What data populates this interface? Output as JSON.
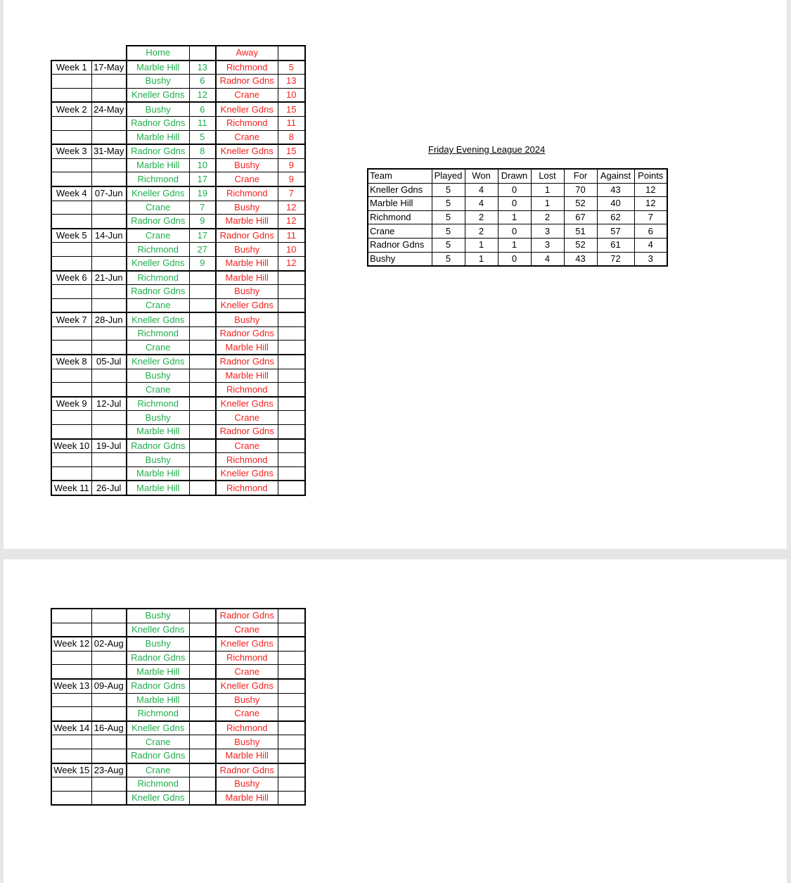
{
  "colors": {
    "home": "#1fae4b",
    "away": "#f5211e"
  },
  "fixtures": {
    "header": {
      "home": "Home",
      "away": "Away"
    },
    "page1": [
      {
        "week": "Week 1",
        "date": "17-May",
        "matches": [
          [
            "Marble Hill",
            "13",
            "Richmond",
            "5"
          ],
          [
            "Bushy",
            "6",
            "Radnor Gdns",
            "13"
          ],
          [
            "Kneller Gdns",
            "12",
            "Crane",
            "10"
          ]
        ]
      },
      {
        "week": "Week 2",
        "date": "24-May",
        "matches": [
          [
            "Bushy",
            "6",
            "Kneller Gdns",
            "15"
          ],
          [
            "Radnor Gdns",
            "11",
            "Richmond",
            "11"
          ],
          [
            "Marble Hill",
            "5",
            "Crane",
            "8"
          ]
        ]
      },
      {
        "week": "Week 3",
        "date": "31-May",
        "matches": [
          [
            "Radnor Gdns",
            "8",
            "Kneller Gdns",
            "15"
          ],
          [
            "Marble Hill",
            "10",
            "Bushy",
            "9"
          ],
          [
            "Richmond",
            "17",
            "Crane",
            "9"
          ]
        ]
      },
      {
        "week": "Week 4",
        "date": "07-Jun",
        "matches": [
          [
            "Kneller Gdns",
            "19",
            "Richmond",
            "7"
          ],
          [
            "Crane",
            "7",
            "Bushy",
            "12"
          ],
          [
            "Radnor Gdns",
            "9",
            "Marble Hill",
            "12"
          ]
        ]
      },
      {
        "week": "Week 5",
        "date": "14-Jun",
        "matches": [
          [
            "Crane",
            "17",
            "Radnor Gdns",
            "11"
          ],
          [
            "Richmond",
            "27",
            "Bushy",
            "10"
          ],
          [
            "Kneller Gdns",
            "9",
            "Marble Hill",
            "12"
          ]
        ]
      },
      {
        "week": "Week 6",
        "date": "21-Jun",
        "matches": [
          [
            "Richmond",
            "",
            "Marble Hill",
            ""
          ],
          [
            "Radnor Gdns",
            "",
            "Bushy",
            ""
          ],
          [
            "Crane",
            "",
            "Kneller Gdns",
            ""
          ]
        ]
      },
      {
        "week": "Week 7",
        "date": "28-Jun",
        "matches": [
          [
            "Kneller Gdns",
            "",
            "Bushy",
            ""
          ],
          [
            "Richmond",
            "",
            "Radnor Gdns",
            ""
          ],
          [
            "Crane",
            "",
            "Marble Hill",
            ""
          ]
        ]
      },
      {
        "week": "Week 8",
        "date": "05-Jul",
        "matches": [
          [
            "Kneller Gdns",
            "",
            "Radnor Gdns",
            ""
          ],
          [
            "Bushy",
            "",
            "Marble Hill",
            ""
          ],
          [
            "Crane",
            "",
            "Richmond",
            ""
          ]
        ]
      },
      {
        "week": "Week 9",
        "date": "12-Jul",
        "matches": [
          [
            "Richmond",
            "",
            "Kneller Gdns",
            ""
          ],
          [
            "Bushy",
            "",
            "Crane",
            ""
          ],
          [
            "Marble Hill",
            "",
            "Radnor Gdns",
            ""
          ]
        ]
      },
      {
        "week": "Week 10",
        "date": "19-Jul",
        "matches": [
          [
            "Radnor Gdns",
            "",
            "Crane",
            ""
          ],
          [
            "Bushy",
            "",
            "Richmond",
            ""
          ],
          [
            "Marble Hill",
            "",
            "Kneller Gdns",
            ""
          ]
        ]
      },
      {
        "week": "Week 11",
        "date": "26-Jul",
        "matches": [
          [
            "Marble Hill",
            "",
            "Richmond",
            ""
          ]
        ]
      }
    ],
    "page2": [
      {
        "week": "",
        "date": "",
        "matches": [
          [
            "Bushy",
            "",
            "Radnor Gdns",
            ""
          ],
          [
            "Kneller Gdns",
            "",
            "Crane",
            ""
          ]
        ]
      },
      {
        "week": "Week 12",
        "date": "02-Aug",
        "matches": [
          [
            "Bushy",
            "",
            "Kneller Gdns",
            ""
          ],
          [
            "Radnor Gdns",
            "",
            "Richmond",
            ""
          ],
          [
            "Marble Hill",
            "",
            "Crane",
            ""
          ]
        ]
      },
      {
        "week": "Week 13",
        "date": "09-Aug",
        "matches": [
          [
            "Radnor Gdns",
            "",
            "Kneller Gdns",
            ""
          ],
          [
            "Marble Hill",
            "",
            "Bushy",
            ""
          ],
          [
            "Richmond",
            "",
            "Crane",
            ""
          ]
        ]
      },
      {
        "week": "Week 14",
        "date": "16-Aug",
        "matches": [
          [
            "Kneller Gdns",
            "",
            "Richmond",
            ""
          ],
          [
            "Crane",
            "",
            "Bushy",
            ""
          ],
          [
            "Radnor Gdns",
            "",
            "Marble Hill",
            ""
          ]
        ]
      },
      {
        "week": "Week 15",
        "date": "23-Aug",
        "matches": [
          [
            "Crane",
            "",
            "Radnor Gdns",
            ""
          ],
          [
            "Richmond",
            "",
            "Bushy",
            ""
          ],
          [
            "Kneller Gdns",
            "",
            "Marble Hill",
            ""
          ]
        ]
      }
    ]
  },
  "standings": {
    "title": "Friday Evening League 2024",
    "columns": [
      "Team",
      "Played",
      "Won",
      "Drawn",
      "Lost",
      "For",
      "Against",
      "Points"
    ],
    "rows": [
      [
        "Kneller Gdns",
        "5",
        "4",
        "0",
        "1",
        "70",
        "43",
        "12"
      ],
      [
        "Marble Hill",
        "5",
        "4",
        "0",
        "1",
        "52",
        "40",
        "12"
      ],
      [
        "Richmond",
        "5",
        "2",
        "1",
        "2",
        "67",
        "62",
        "7"
      ],
      [
        "Crane",
        "5",
        "2",
        "0",
        "3",
        "51",
        "57",
        "6"
      ],
      [
        "Radnor Gdns",
        "5",
        "1",
        "1",
        "3",
        "52",
        "61",
        "4"
      ],
      [
        "Bushy",
        "5",
        "1",
        "0",
        "4",
        "43",
        "72",
        "3"
      ]
    ]
  }
}
